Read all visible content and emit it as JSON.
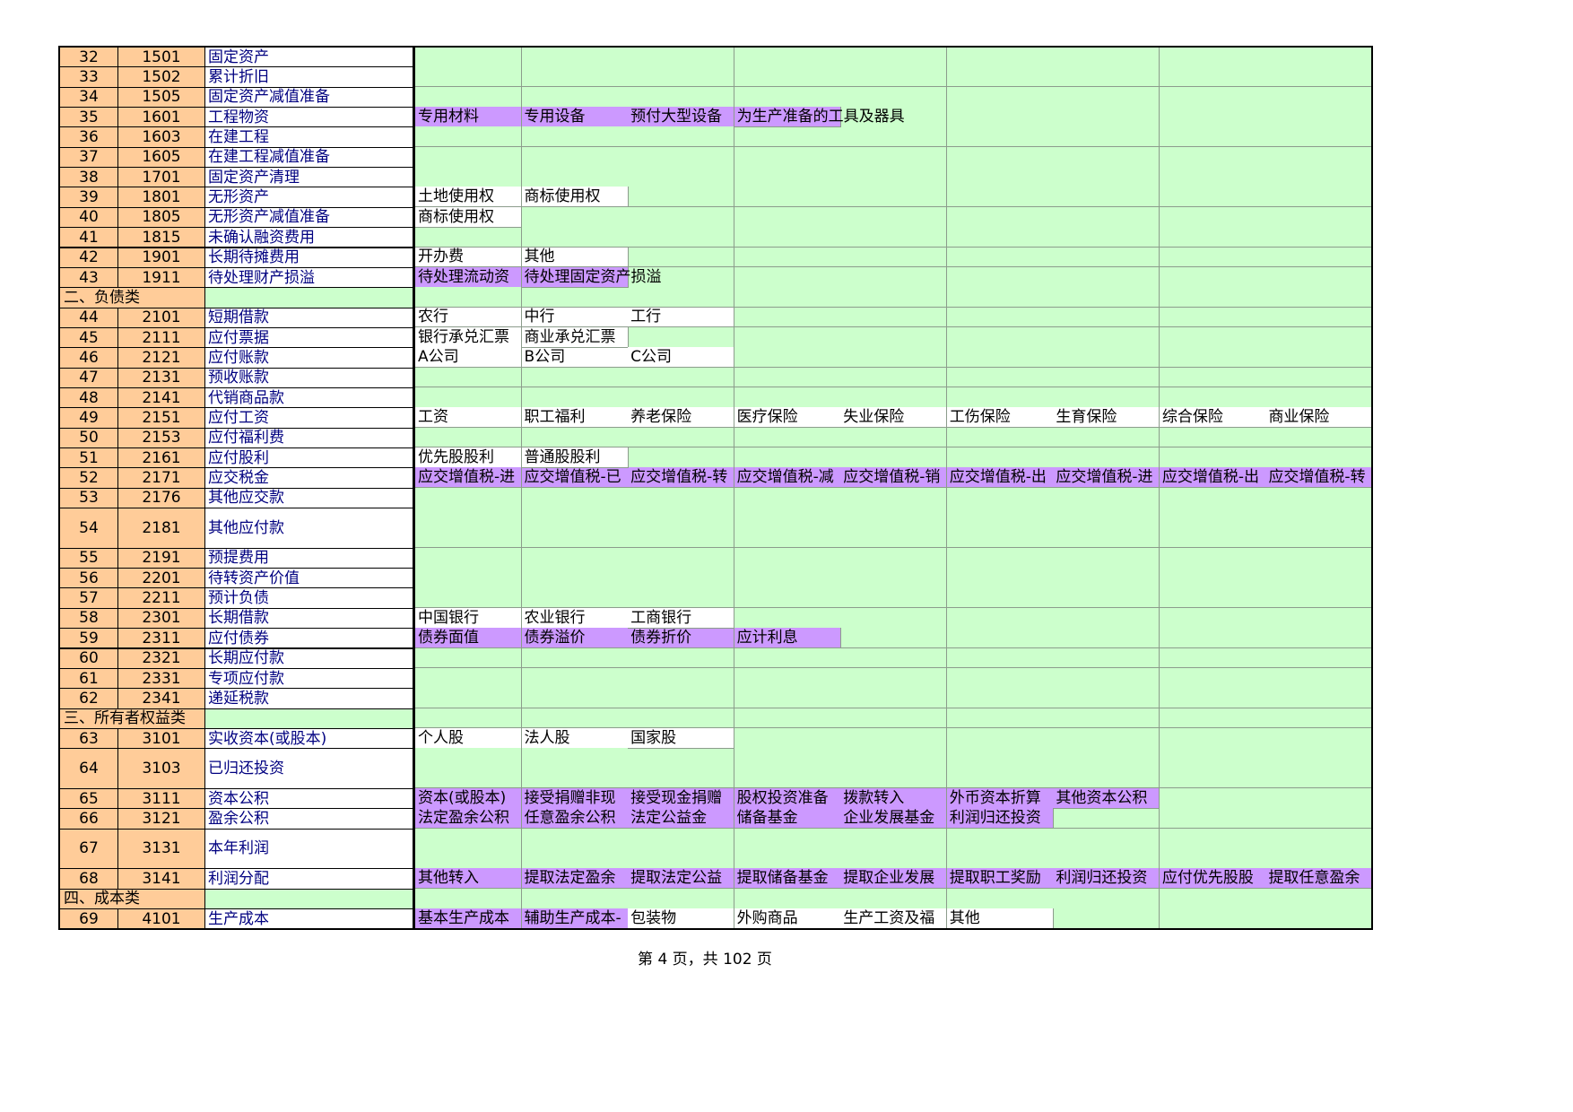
{
  "rows": [
    {
      "no": "32",
      "code": "1501",
      "name": "固定资产",
      "items": []
    },
    {
      "no": "33",
      "code": "1502",
      "name": "累计折旧",
      "items": []
    },
    {
      "no": "34",
      "code": "1505",
      "name": "固定资产减值准备",
      "items": []
    },
    {
      "no": "35",
      "code": "1601",
      "name": "工程物资",
      "items": [
        {
          "text": "专用材料",
          "fill": "#cc99ff"
        },
        {
          "text": "专用设备",
          "fill": "#cc99ff"
        },
        {
          "text": "预付大型设备",
          "fill": "#cc99ff"
        },
        {
          "text": "为生产准备的工具及器具",
          "fill": "#cc99ff"
        }
      ]
    },
    {
      "no": "36",
      "code": "1603",
      "name": "在建工程",
      "items": []
    },
    {
      "no": "37",
      "code": "1605",
      "name": "在建工程减值准备",
      "items": []
    },
    {
      "no": "38",
      "code": "1701",
      "name": "固定资产清理",
      "items": []
    },
    {
      "no": "39",
      "code": "1801",
      "name": "无形资产",
      "items": [
        {
          "text": "土地使用权",
          "fill": "#ffffff"
        },
        {
          "text": "商标使用权",
          "fill": "#ffffff"
        }
      ]
    },
    {
      "no": "40",
      "code": "1805",
      "name": "无形资产减值准备",
      "items": [
        {
          "text": "商标使用权",
          "fill": "#ffffff"
        }
      ]
    },
    {
      "no": "41",
      "code": "1815",
      "name": "未确认融资费用",
      "items": []
    },
    {
      "no": "42",
      "code": "1901",
      "name": "长期待摊费用",
      "items": [
        {
          "text": "开办费",
          "fill": "#ffffff"
        },
        {
          "text": "其他",
          "fill": "#ffffff"
        }
      ]
    },
    {
      "no": "43",
      "code": "1911",
      "name": "待处理财产损溢",
      "items": [
        {
          "text": "待处理流动资",
          "fill": "#cc99ff"
        },
        {
          "text": "待处理固定资产损溢",
          "fill": "#cc99ff"
        }
      ]
    },
    {
      "section": "二、负债类"
    },
    {
      "no": "44",
      "code": "2101",
      "name": "短期借款",
      "items": [
        {
          "text": "农行",
          "fill": "#ffffff"
        },
        {
          "text": "中行",
          "fill": "#ffffff"
        },
        {
          "text": "工行",
          "fill": "#ffffff"
        }
      ]
    },
    {
      "no": "45",
      "code": "2111",
      "name": "应付票据",
      "items": [
        {
          "text": "银行承兑汇票",
          "fill": "#ffffff"
        },
        {
          "text": "商业承兑汇票",
          "fill": "#ffffff"
        }
      ]
    },
    {
      "no": "46",
      "code": "2121",
      "name": "应付账款",
      "items": [
        {
          "text": "A公司",
          "fill": "#ffffff"
        },
        {
          "text": "B公司",
          "fill": "#ffffff"
        },
        {
          "text": "C公司",
          "fill": "#ffffff"
        }
      ]
    },
    {
      "no": "47",
      "code": "2131",
      "name": "预收账款",
      "items": []
    },
    {
      "no": "48",
      "code": "2141",
      "name": "代销商品款",
      "items": []
    },
    {
      "no": "49",
      "code": "2151",
      "name": "应付工资",
      "items": [
        {
          "text": "工资",
          "fill": "#ffffff"
        },
        {
          "text": "职工福利",
          "fill": "#ffffff"
        },
        {
          "text": "养老保险",
          "fill": "#ffffff"
        },
        {
          "text": "医疗保险",
          "fill": "#ffffff"
        },
        {
          "text": "失业保险",
          "fill": "#ffffff"
        },
        {
          "text": "工伤保险",
          "fill": "#ffffff"
        },
        {
          "text": "生育保险",
          "fill": "#ffffff"
        },
        {
          "text": "综合保险",
          "fill": "#ffffff"
        },
        {
          "text": "商业保险",
          "fill": "#ffffff"
        }
      ]
    },
    {
      "no": "50",
      "code": "2153",
      "name": "应付福利费",
      "items": []
    },
    {
      "no": "51",
      "code": "2161",
      "name": "应付股利",
      "items": [
        {
          "text": "优先股股利",
          "fill": "#ffffff"
        },
        {
          "text": "普通股股利",
          "fill": "#ffffff"
        }
      ]
    },
    {
      "no": "52",
      "code": "2171",
      "name": "应交税金",
      "items": [
        {
          "text": "应交增值税-进",
          "fill": "#cc99ff"
        },
        {
          "text": "应交增值税-已",
          "fill": "#cc99ff"
        },
        {
          "text": "应交增值税-转",
          "fill": "#cc99ff"
        },
        {
          "text": "应交增值税-减",
          "fill": "#cc99ff"
        },
        {
          "text": "应交增值税-销",
          "fill": "#cc99ff"
        },
        {
          "text": "应交增值税-出",
          "fill": "#cc99ff"
        },
        {
          "text": "应交增值税-进",
          "fill": "#cc99ff"
        },
        {
          "text": "应交增值税-出",
          "fill": "#cc99ff"
        },
        {
          "text": "应交增值税-转",
          "fill": "#cc99ff"
        }
      ]
    },
    {
      "no": "53",
      "code": "2176",
      "name": "其他应交款",
      "items": []
    },
    {
      "no": "54",
      "code": "2181",
      "name": "其他应付款",
      "items": []
    },
    {
      "no": "55",
      "code": "2191",
      "name": "预提费用",
      "items": []
    },
    {
      "no": "56",
      "code": "2201",
      "name": "待转资产价值",
      "items": []
    },
    {
      "no": "57",
      "code": "2211",
      "name": "预计负债",
      "items": []
    },
    {
      "no": "58",
      "code": "2301",
      "name": "长期借款",
      "items": [
        {
          "text": "中国银行",
          "fill": "#ffffff"
        },
        {
          "text": "农业银行",
          "fill": "#ffffff"
        },
        {
          "text": "工商银行",
          "fill": "#ffffff"
        }
      ]
    },
    {
      "no": "59",
      "code": "2311",
      "name": "应付债券",
      "items": [
        {
          "text": "债券面值",
          "fill": "#cc99ff"
        },
        {
          "text": "债券溢价",
          "fill": "#cc99ff"
        },
        {
          "text": "债券折价",
          "fill": "#cc99ff"
        },
        {
          "text": "应计利息",
          "fill": "#cc99ff"
        }
      ]
    },
    {
      "no": "60",
      "code": "2321",
      "name": "长期应付款",
      "items": []
    },
    {
      "no": "61",
      "code": "2331",
      "name": "专项应付款",
      "items": []
    },
    {
      "no": "62",
      "code": "2341",
      "name": "递延税款",
      "items": []
    },
    {
      "section": "三、所有者权益类"
    },
    {
      "no": "63",
      "code": "3101",
      "name": "实收资本(或股本)",
      "items": [
        {
          "text": "个人股",
          "fill": "#ffffff"
        },
        {
          "text": "法人股",
          "fill": "#ffffff"
        },
        {
          "text": "国家股",
          "fill": "#ffffff"
        }
      ]
    },
    {
      "no": "64",
      "code": "3103",
      "name": "已归还投资",
      "items": []
    },
    {
      "no": "65",
      "code": "3111",
      "name": "资本公积",
      "items": [
        {
          "text": "资本(或股本)",
          "fill": "#cc99ff"
        },
        {
          "text": "接受捐赠非现",
          "fill": "#cc99ff"
        },
        {
          "text": "接受现金捐赠",
          "fill": "#cc99ff"
        },
        {
          "text": "股权投资准备",
          "fill": "#cc99ff"
        },
        {
          "text": "拨款转入",
          "fill": "#cc99ff"
        },
        {
          "text": "外币资本折算",
          "fill": "#cc99ff"
        },
        {
          "text": "其他资本公积",
          "fill": "#cc99ff"
        }
      ]
    },
    {
      "no": "66",
      "code": "3121",
      "name": "盈余公积",
      "items": [
        {
          "text": "法定盈余公积",
          "fill": "#cc99ff"
        },
        {
          "text": "任意盈余公积",
          "fill": "#cc99ff"
        },
        {
          "text": "法定公益金",
          "fill": "#cc99ff"
        },
        {
          "text": "储备基金",
          "fill": "#cc99ff"
        },
        {
          "text": "企业发展基金",
          "fill": "#cc99ff"
        },
        {
          "text": "利润归还投资",
          "fill": "#cc99ff"
        }
      ]
    },
    {
      "no": "67",
      "code": "3131",
      "name": "本年利润",
      "items": []
    },
    {
      "no": "68",
      "code": "3141",
      "name": "利润分配",
      "items": [
        {
          "text": "其他转入",
          "fill": "#cc99ff"
        },
        {
          "text": "提取法定盈余",
          "fill": "#cc99ff"
        },
        {
          "text": "提取法定公益",
          "fill": "#cc99ff"
        },
        {
          "text": "提取储备基金",
          "fill": "#cc99ff"
        },
        {
          "text": "提取企业发展",
          "fill": "#cc99ff"
        },
        {
          "text": "提取职工奖励",
          "fill": "#cc99ff"
        },
        {
          "text": "利润归还投资",
          "fill": "#cc99ff"
        },
        {
          "text": "应付优先股股",
          "fill": "#cc99ff"
        },
        {
          "text": "提取任意盈余",
          "fill": "#cc99ff"
        }
      ]
    },
    {
      "section": "四、成本类"
    },
    {
      "no": "69",
      "code": "4101",
      "name": "生产成本",
      "items": [
        {
          "text": "基本生产成本",
          "fill": "#cc99ff"
        },
        {
          "text": "辅助生产成本-",
          "fill": "#cc99ff"
        },
        {
          "text": "包装物",
          "fill": "#ffffff"
        },
        {
          "text": "外购商品",
          "fill": "#ffffff"
        },
        {
          "text": "生产工资及福",
          "fill": "#ffffff"
        },
        {
          "text": "其他",
          "fill": "#ffffff"
        }
      ]
    }
  ],
  "footer": "第 4 页，共 102 页"
}
